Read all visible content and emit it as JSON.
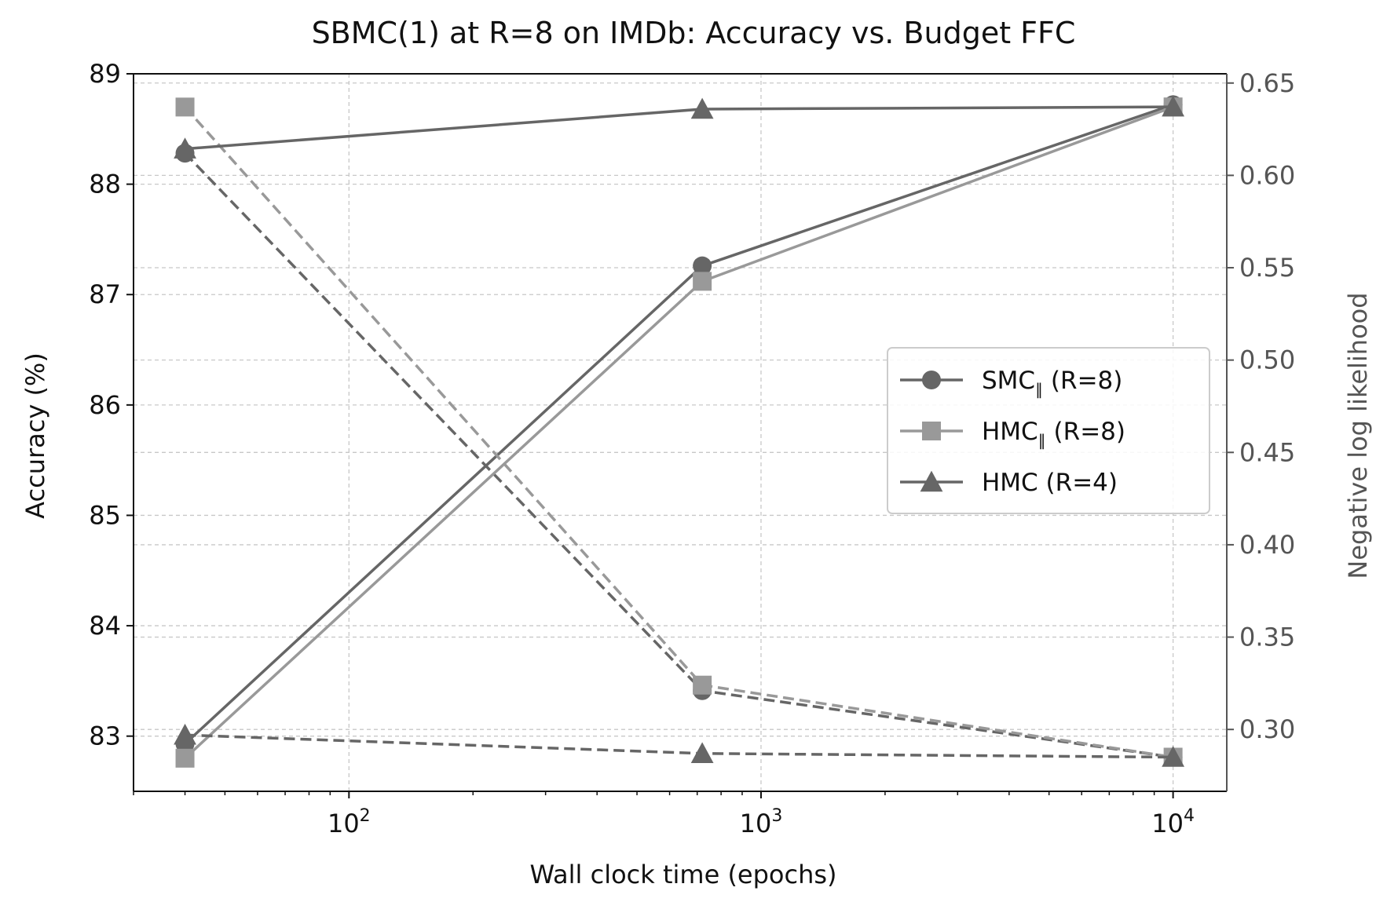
{
  "chart_data": {
    "type": "line",
    "title": "SBMC(1) at R=8 on IMDb: Accuracy vs. Budget FFC",
    "xlabel": "Wall clock time (epochs)",
    "ylabel": "Accuracy (%)",
    "y2label": "Negative log likelihood",
    "xscale": "log",
    "xlim": [
      30,
      13500
    ],
    "ylim": [
      82.5,
      89.0
    ],
    "y2lim": [
      0.2665,
      0.655
    ],
    "x_ticks": [
      {
        "value": 100,
        "base": "10",
        "exp": "2"
      },
      {
        "value": 1000,
        "base": "10",
        "exp": "3"
      },
      {
        "value": 10000,
        "base": "10",
        "exp": "4"
      }
    ],
    "y_ticks": [
      "83",
      "84",
      "85",
      "86",
      "87",
      "88",
      "89"
    ],
    "y2_ticks": [
      "0.30",
      "0.35",
      "0.40",
      "0.45",
      "0.50",
      "0.55",
      "0.60",
      "0.65"
    ],
    "grid": true,
    "legend_position": "center-right",
    "series": [
      {
        "name_main": "SMC",
        "name_sub": "∥",
        "name_rest": " (R=8)",
        "marker": "circle",
        "color": "#666666",
        "x": [
          40,
          720,
          10000
        ],
        "accuracy": [
          82.93,
          87.26,
          88.72
        ],
        "nll": [
          0.612,
          0.321,
          0.285
        ]
      },
      {
        "name_main": "HMC",
        "name_sub": "∥",
        "name_rest": " (R=8)",
        "marker": "square",
        "color": "#999999",
        "x": [
          40,
          720,
          10000
        ],
        "accuracy": [
          82.8,
          87.12,
          88.7
        ],
        "nll": [
          0.637,
          0.324,
          0.285
        ]
      },
      {
        "name_main": "HMC (R=4)",
        "name_sub": "",
        "name_rest": "",
        "marker": "triangle",
        "color": "#666666",
        "x": [
          40,
          720,
          10000
        ],
        "accuracy": [
          88.32,
          88.68,
          88.7
        ],
        "nll": [
          0.297,
          0.287,
          0.285
        ]
      }
    ]
  }
}
